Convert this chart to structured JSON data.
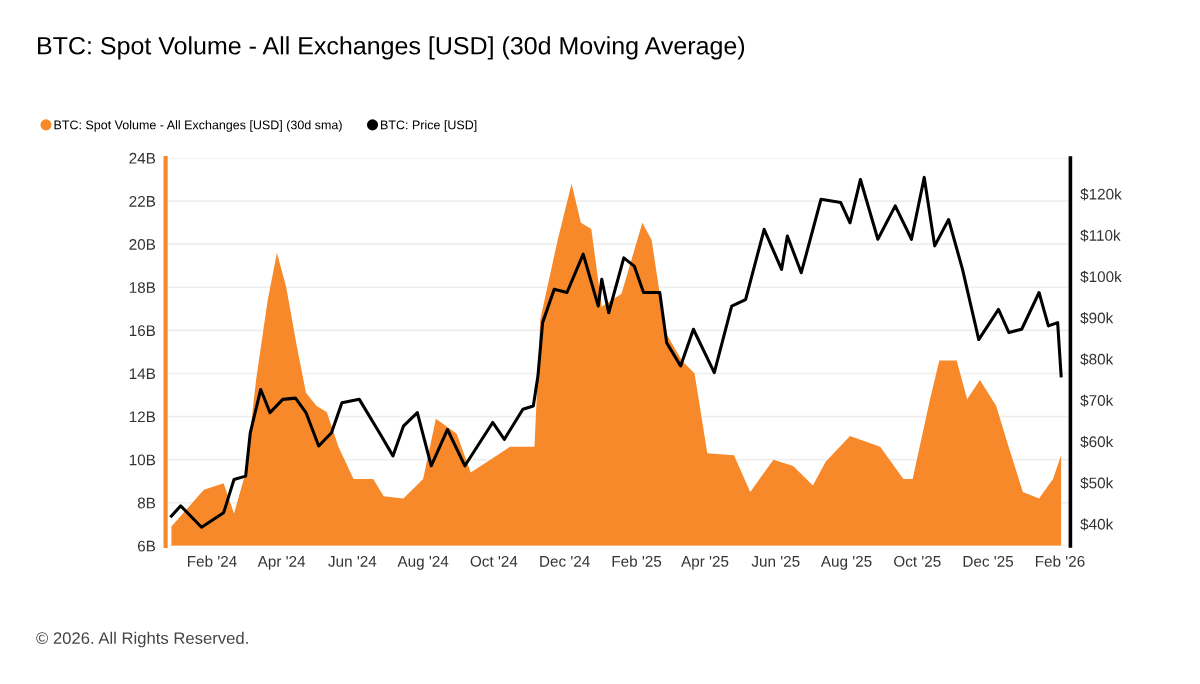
{
  "chart_data": {
    "type": "area",
    "title": "BTC: Spot Volume - All Exchanges [USD] (30d Moving Average)",
    "xlim": [
      "2023-12-23",
      "2026-02-10"
    ],
    "xticks": [
      {
        "value": "2024-02-01",
        "label": "Feb '24"
      },
      {
        "value": "2024-04-01",
        "label": "Apr '24"
      },
      {
        "value": "2024-06-01",
        "label": "Jun '24"
      },
      {
        "value": "2024-08-01",
        "label": "Aug '24"
      },
      {
        "value": "2024-10-01",
        "label": "Oct '24"
      },
      {
        "value": "2024-12-01",
        "label": "Dec '24"
      },
      {
        "value": "2025-02-01",
        "label": "Feb '25"
      },
      {
        "value": "2025-04-01",
        "label": "Apr '25"
      },
      {
        "value": "2025-06-01",
        "label": "Jun '25"
      },
      {
        "value": "2025-08-01",
        "label": "Aug '25"
      },
      {
        "value": "2025-10-01",
        "label": "Oct '25"
      },
      {
        "value": "2025-12-01",
        "label": "Dec '25"
      },
      {
        "value": "2026-02-01",
        "label": "Feb '26"
      }
    ],
    "ylim": [
      6,
      24
    ],
    "yticks": [
      {
        "value": 6,
        "label": "6B"
      },
      {
        "value": 8,
        "label": "8B"
      },
      {
        "value": 10,
        "label": "10B"
      },
      {
        "value": 12,
        "label": "12B"
      },
      {
        "value": 14,
        "label": "14B"
      },
      {
        "value": 16,
        "label": "16B"
      },
      {
        "value": 18,
        "label": "18B"
      },
      {
        "value": 20,
        "label": "20B"
      },
      {
        "value": 22,
        "label": "22B"
      },
      {
        "value": 24,
        "label": "24B"
      }
    ],
    "y2lim": [
      34700,
      128700
    ],
    "y2ticks": [
      {
        "value": 40000,
        "label": "$40k"
      },
      {
        "value": 50000,
        "label": "$50k"
      },
      {
        "value": 60000,
        "label": "$60k"
      },
      {
        "value": 70000,
        "label": "$70k"
      },
      {
        "value": 80000,
        "label": "$80k"
      },
      {
        "value": 90000,
        "label": "$90k"
      },
      {
        "value": 100000,
        "label": "$100k"
      },
      {
        "value": 110000,
        "label": "$110k"
      },
      {
        "value": 120000,
        "label": "$120k"
      }
    ],
    "grid": "y",
    "legend": "top left",
    "annotations": [
      "© 2026. All Rights Reserved."
    ],
    "series": [
      {
        "name": "BTC: Spot Volume - All Exchanges [USD] (30d sma)",
        "color": "#f7892b",
        "x": [
          "2023-12-28",
          "2024-01-25",
          "2024-02-11",
          "2024-02-20",
          "2024-03-01",
          "2024-03-10",
          "2024-03-20",
          "2024-03-28",
          "2024-04-05",
          "2024-04-14",
          "2024-04-22",
          "2024-05-01",
          "2024-05-10",
          "2024-05-20",
          "2024-06-02",
          "2024-06-19",
          "2024-06-28",
          "2024-07-15",
          "2024-08-01",
          "2024-08-12",
          "2024-08-30",
          "2024-09-11",
          "2024-09-28",
          "2024-10-15",
          "2024-11-05",
          "2024-11-10",
          "2024-11-25",
          "2024-12-07",
          "2024-12-15",
          "2024-12-24",
          "2025-01-02",
          "2025-01-19",
          "2025-02-06",
          "2025-02-14",
          "2025-02-26",
          "2025-03-12",
          "2025-03-23",
          "2025-04-03",
          "2025-04-26",
          "2025-05-10",
          "2025-05-30",
          "2025-06-16",
          "2025-07-03",
          "2025-07-14",
          "2025-08-04",
          "2025-08-30",
          "2025-09-19",
          "2025-09-27",
          "2025-10-12",
          "2025-10-20",
          "2025-11-04",
          "2025-11-13",
          "2025-11-24",
          "2025-12-08",
          "2025-12-17",
          "2025-12-31",
          "2026-01-14",
          "2026-01-26",
          "2026-02-02"
        ],
        "values": [
          6.9,
          8.6,
          8.9,
          7.5,
          9.4,
          13.7,
          17.4,
          19.6,
          18.0,
          15.3,
          13.1,
          12.5,
          12.2,
          10.6,
          9.1,
          9.1,
          8.3,
          8.2,
          9.1,
          11.9,
          11.2,
          9.4,
          10.0,
          10.6,
          10.6,
          16.5,
          20.2,
          22.8,
          21.0,
          20.7,
          17.1,
          17.7,
          21.0,
          20.2,
          15.9,
          14.6,
          14.0,
          10.3,
          10.2,
          8.5,
          10.0,
          9.7,
          8.8,
          9.9,
          11.1,
          10.6,
          9.1,
          9.1,
          12.8,
          14.6,
          14.6,
          12.8,
          13.7,
          12.5,
          10.9,
          8.5,
          8.2,
          9.1,
          10.2
        ]
      },
      {
        "name": "BTC: Price [USD]",
        "type": "line",
        "axis": "y2",
        "color": "#000000",
        "x": [
          "2023-12-28",
          "2024-01-05",
          "2024-01-23",
          "2024-02-11",
          "2024-02-20",
          "2024-03-01",
          "2024-03-05",
          "2024-03-14",
          "2024-03-22",
          "2024-04-02",
          "2024-04-13",
          "2024-04-22",
          "2024-05-03",
          "2024-05-14",
          "2024-05-23",
          "2024-06-07",
          "2024-06-26",
          "2024-07-06",
          "2024-07-15",
          "2024-07-27",
          "2024-08-08",
          "2024-08-22",
          "2024-09-06",
          "2024-09-30",
          "2024-10-10",
          "2024-10-26",
          "2024-11-04",
          "2024-11-08",
          "2024-11-12",
          "2024-11-22",
          "2024-12-03",
          "2024-12-17",
          "2024-12-30",
          "2025-01-02",
          "2025-01-08",
          "2025-01-21",
          "2025-01-30",
          "2025-02-07",
          "2025-02-21",
          "2025-02-27",
          "2025-03-11",
          "2025-03-22",
          "2025-04-09",
          "2025-04-24",
          "2025-05-06",
          "2025-05-22",
          "2025-06-06",
          "2025-06-11",
          "2025-06-23",
          "2025-07-10",
          "2025-07-27",
          "2025-08-04",
          "2025-08-13",
          "2025-08-28",
          "2025-09-12",
          "2025-09-26",
          "2025-10-07",
          "2025-10-16",
          "2025-10-28",
          "2025-11-09",
          "2025-11-23",
          "2025-12-10",
          "2025-12-19",
          "2025-12-30",
          "2026-01-14",
          "2026-01-22",
          "2026-01-30",
          "2026-02-02"
        ],
        "values": [
          41900,
          44400,
          39200,
          42700,
          50800,
          51600,
          62100,
          72600,
          67000,
          70200,
          70500,
          67000,
          58900,
          62100,
          69400,
          70200,
          61300,
          56500,
          63700,
          67000,
          54100,
          62900,
          54100,
          64600,
          60500,
          67800,
          68600,
          75900,
          88800,
          96900,
          96100,
          105400,
          92800,
          99300,
          91200,
          104500,
          102500,
          96100,
          96100,
          83900,
          78300,
          87200,
          76700,
          92800,
          94400,
          111400,
          101700,
          109800,
          100900,
          118700,
          117900,
          113000,
          123500,
          109000,
          117100,
          109000,
          124000,
          107400,
          113800,
          101700,
          84700,
          92000,
          86400,
          87200,
          96100,
          88000,
          88800,
          75900
        ]
      }
    ]
  }
}
